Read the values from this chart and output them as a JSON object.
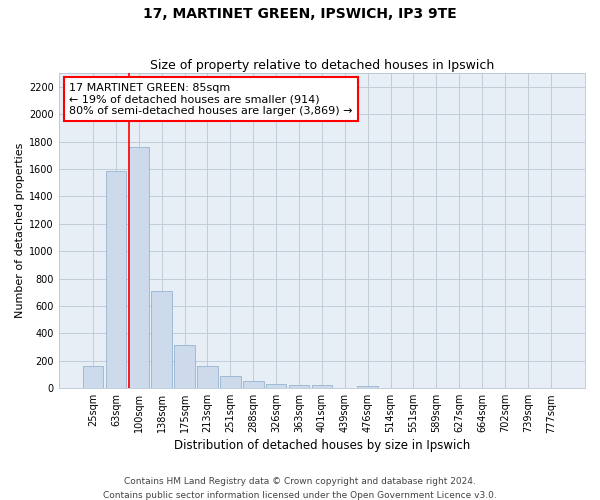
{
  "title": "17, MARTINET GREEN, IPSWICH, IP3 9TE",
  "subtitle": "Size of property relative to detached houses in Ipswich",
  "xlabel": "Distribution of detached houses by size in Ipswich",
  "ylabel": "Number of detached properties",
  "categories": [
    "25sqm",
    "63sqm",
    "100sqm",
    "138sqm",
    "175sqm",
    "213sqm",
    "251sqm",
    "288sqm",
    "326sqm",
    "363sqm",
    "401sqm",
    "439sqm",
    "476sqm",
    "514sqm",
    "551sqm",
    "589sqm",
    "627sqm",
    "664sqm",
    "702sqm",
    "739sqm",
    "777sqm"
  ],
  "values": [
    160,
    1585,
    1760,
    710,
    315,
    160,
    90,
    55,
    30,
    25,
    20,
    0,
    15,
    0,
    0,
    0,
    0,
    0,
    0,
    0,
    0
  ],
  "bar_color": "#ccdaeb",
  "bar_edge_color": "#8aaac8",
  "grid_color": "#c0ccd8",
  "bg_color": "#e8eef6",
  "vline_color": "red",
  "vline_pos": 1.58,
  "annotation_title": "17 MARTINET GREEN: 85sqm",
  "annotation_line1": "← 19% of detached houses are smaller (914)",
  "annotation_line2": "80% of semi-detached houses are larger (3,869) →",
  "annotation_box_color": "white",
  "annotation_border_color": "red",
  "ylim": [
    0,
    2300
  ],
  "yticks": [
    0,
    200,
    400,
    600,
    800,
    1000,
    1200,
    1400,
    1600,
    1800,
    2000,
    2200
  ],
  "footer1": "Contains HM Land Registry data © Crown copyright and database right 2024.",
  "footer2": "Contains public sector information licensed under the Open Government Licence v3.0.",
  "title_fontsize": 10,
  "subtitle_fontsize": 9,
  "xlabel_fontsize": 8.5,
  "ylabel_fontsize": 8,
  "tick_fontsize": 7,
  "footer_fontsize": 6.5,
  "annotation_fontsize": 8
}
